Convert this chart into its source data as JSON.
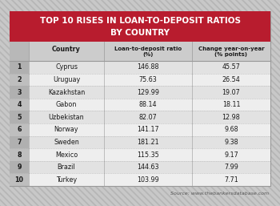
{
  "title_line1": "TOP 10 RISES IN LOAN-TO-DEPOSIT RATIOS",
  "title_line2": "BY COUNTRY",
  "title_bg_color": "#b81c2e",
  "title_text_color": "#ffffff",
  "ranks": [
    1,
    2,
    3,
    4,
    5,
    6,
    7,
    8,
    9,
    10
  ],
  "countries": [
    "Cyprus",
    "Uruguay",
    "Kazakhstan",
    "Gabon",
    "Uzbekistan",
    "Norway",
    "Sweden",
    "Mexico",
    "Brazil",
    "Turkey"
  ],
  "loan_ratios": [
    "146.88",
    "75.63",
    "129.99",
    "88.14",
    "82.07",
    "141.17",
    "181.21",
    "115.35",
    "144.63",
    "103.99"
  ],
  "changes": [
    "45.57",
    "26.54",
    "19.07",
    "18.11",
    "12.98",
    "9.68",
    "9.38",
    "9.17",
    "7.99",
    "7.71"
  ],
  "source": "Source: www.thebankersdatabase.com",
  "hatch_bg_color": "#c8c8c8",
  "hatch_line_color": "#b5b5b5",
  "table_bg_color": "#ffffff",
  "header_bg_color": "#cccccc",
  "row_colors": [
    "#e2e2e2",
    "#eeeeee"
  ],
  "rank_col_colors": [
    "#b0b0b0",
    "#bebebe"
  ],
  "divider_color": "#999999",
  "dotted_color": "#aaaaaa",
  "text_dark": "#1a1a1a",
  "source_color": "#555555"
}
